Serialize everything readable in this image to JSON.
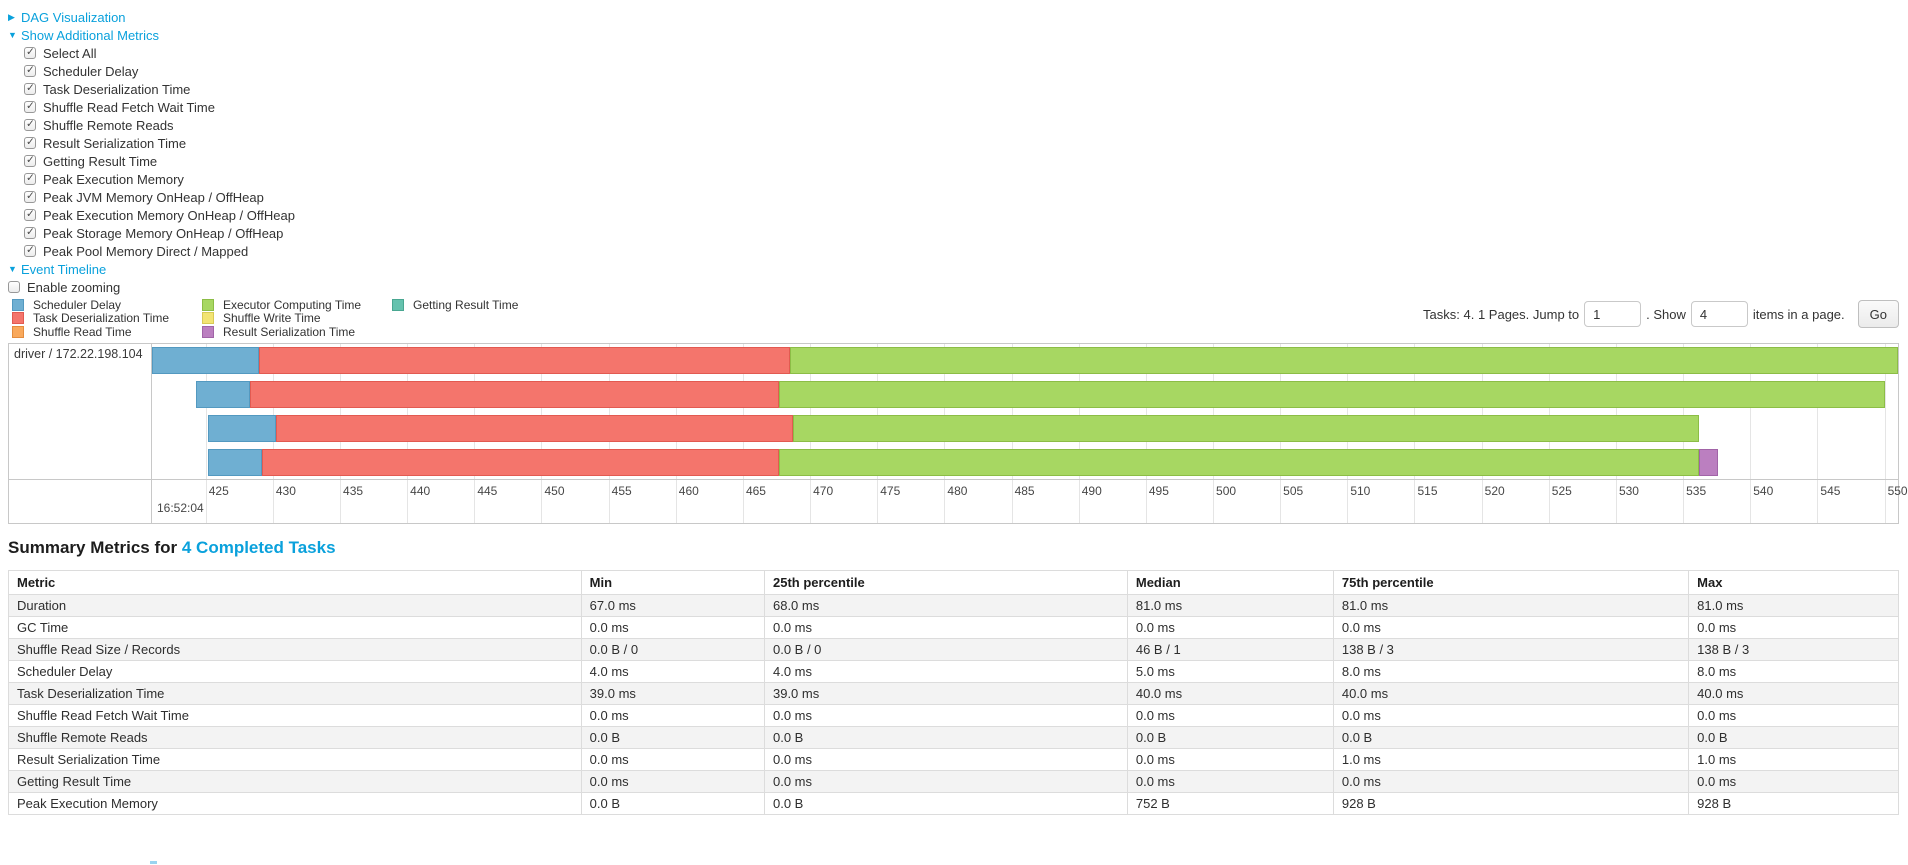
{
  "nav": {
    "dag": {
      "label": "DAG Visualization"
    },
    "additional_metrics": {
      "label": "Show Additional Metrics",
      "all_checked": true,
      "items": [
        "Select All",
        "Scheduler Delay",
        "Task Deserialization Time",
        "Shuffle Read Fetch Wait Time",
        "Shuffle Remote Reads",
        "Result Serialization Time",
        "Getting Result Time",
        "Peak Execution Memory",
        "Peak JVM Memory OnHeap / OffHeap",
        "Peak Execution Memory OnHeap / OffHeap",
        "Peak Storage Memory OnHeap / OffHeap",
        "Peak Pool Memory Direct / Mapped"
      ]
    },
    "event_timeline": {
      "label": "Event Timeline"
    },
    "enable_zooming": {
      "label": "Enable zooming",
      "checked": false
    }
  },
  "colors": {
    "scheduler_delay": {
      "fill": "#6fafd2",
      "border": "#5399c0"
    },
    "task_deserialization": {
      "fill": "#f4756c",
      "border": "#e25a51"
    },
    "shuffle_read": {
      "fill": "#f9a95c",
      "border": "#e38c3e"
    },
    "executor_computing": {
      "fill": "#a7d762",
      "border": "#8cbd46"
    },
    "shuffle_write": {
      "fill": "#f2e473",
      "border": "#d9ca55"
    },
    "getting_result": {
      "fill": "#65c2ae",
      "border": "#49a791"
    },
    "result_serialization": {
      "fill": "#bb7fc0",
      "border": "#a164a7"
    }
  },
  "legend": {
    "columns": [
      [
        {
          "key": "scheduler_delay",
          "label": "Scheduler Delay"
        },
        {
          "key": "task_deserialization",
          "label": "Task Deserialization Time"
        },
        {
          "key": "shuffle_read",
          "label": "Shuffle Read Time"
        }
      ],
      [
        {
          "key": "executor_computing",
          "label": "Executor Computing Time"
        },
        {
          "key": "shuffle_write",
          "label": "Shuffle Write Time"
        },
        {
          "key": "result_serialization",
          "label": "Result Serialization Time"
        }
      ],
      [
        {
          "key": "getting_result",
          "label": "Getting Result Time"
        }
      ]
    ]
  },
  "pagination": {
    "summary": "Tasks: 4. 1 Pages. Jump to",
    "jump_value": "1",
    "mid": ". Show",
    "show_value": "4",
    "suffix": "items in a page.",
    "go": "Go"
  },
  "chart_data": {
    "type": "timeline",
    "title": "Event Timeline",
    "row_label": "driver / 172.22.198.104",
    "x_domain": [
      421,
      551
    ],
    "tick_interval_ms": 5,
    "ticks": [
      425,
      430,
      435,
      440,
      445,
      450,
      455,
      460,
      465,
      470,
      475,
      480,
      485,
      490,
      495,
      500,
      505,
      510,
      515,
      520,
      525,
      530,
      535,
      540,
      545,
      550
    ],
    "major_time_label": "16:52:04",
    "grid": true,
    "tasks": [
      {
        "segments": [
          {
            "type": "scheduler_delay",
            "start": 421.0,
            "end": 429.0
          },
          {
            "type": "task_deserialization",
            "start": 429.0,
            "end": 468.5
          },
          {
            "type": "executor_computing",
            "start": 468.5,
            "end": 551.0
          }
        ]
      },
      {
        "segments": [
          {
            "type": "scheduler_delay",
            "start": 424.3,
            "end": 428.3
          },
          {
            "type": "task_deserialization",
            "start": 428.3,
            "end": 467.7
          },
          {
            "type": "executor_computing",
            "start": 467.7,
            "end": 550.0
          }
        ]
      },
      {
        "segments": [
          {
            "type": "scheduler_delay",
            "start": 425.2,
            "end": 430.2
          },
          {
            "type": "task_deserialization",
            "start": 430.2,
            "end": 468.7
          },
          {
            "type": "executor_computing",
            "start": 468.7,
            "end": 536.2
          }
        ]
      },
      {
        "segments": [
          {
            "type": "scheduler_delay",
            "start": 425.2,
            "end": 429.2
          },
          {
            "type": "task_deserialization",
            "start": 429.2,
            "end": 467.7
          },
          {
            "type": "executor_computing",
            "start": 467.7,
            "end": 536.2
          },
          {
            "type": "result_serialization",
            "start": 536.2,
            "end": 537.6
          }
        ]
      }
    ]
  },
  "summary": {
    "title_prefix": "Summary Metrics for",
    "title_link": "4 Completed Tasks",
    "table": {
      "headers": [
        "Metric",
        "Min",
        "25th percentile",
        "Median",
        "75th percentile",
        "Max"
      ],
      "rows": [
        [
          "Duration",
          "67.0 ms",
          "68.0 ms",
          "81.0 ms",
          "81.0 ms",
          "81.0 ms"
        ],
        [
          "GC Time",
          "0.0 ms",
          "0.0 ms",
          "0.0 ms",
          "0.0 ms",
          "0.0 ms"
        ],
        [
          "Shuffle Read Size / Records",
          "0.0 B / 0",
          "0.0 B / 0",
          "46 B / 1",
          "138 B / 3",
          "138 B / 3"
        ],
        [
          "Scheduler Delay",
          "4.0 ms",
          "4.0 ms",
          "5.0 ms",
          "8.0 ms",
          "8.0 ms"
        ],
        [
          "Task Deserialization Time",
          "39.0 ms",
          "39.0 ms",
          "40.0 ms",
          "40.0 ms",
          "40.0 ms"
        ],
        [
          "Shuffle Read Fetch Wait Time",
          "0.0 ms",
          "0.0 ms",
          "0.0 ms",
          "0.0 ms",
          "0.0 ms"
        ],
        [
          "Shuffle Remote Reads",
          "0.0 B",
          "0.0 B",
          "0.0 B",
          "0.0 B",
          "0.0 B"
        ],
        [
          "Result Serialization Time",
          "0.0 ms",
          "0.0 ms",
          "0.0 ms",
          "1.0 ms",
          "1.0 ms"
        ],
        [
          "Getting Result Time",
          "0.0 ms",
          "0.0 ms",
          "0.0 ms",
          "0.0 ms",
          "0.0 ms"
        ],
        [
          "Peak Execution Memory",
          "0.0 B",
          "0.0 B",
          "752 B",
          "928 B",
          "928 B"
        ]
      ]
    }
  }
}
